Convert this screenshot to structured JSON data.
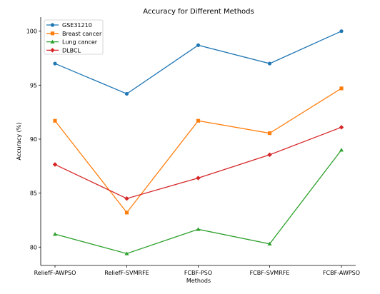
{
  "chart_data": {
    "type": "line",
    "title": "Accuracy for Different Methods",
    "xlabel": "Methods",
    "ylabel": "Accuracy (%)",
    "categories": [
      "ReliefF-AWPSO",
      "ReliefF-SVMRFE",
      "FCBF-PSO",
      "FCBF-SVMRFE",
      "FCBF-AWPSO"
    ],
    "ylim": [
      78.3,
      101.3
    ],
    "yticks": [
      80,
      85,
      90,
      95,
      100
    ],
    "grid": false,
    "legend_position": "top-left",
    "series": [
      {
        "name": "GSE31210",
        "color": "#1f77b4",
        "marker": "circle",
        "values": [
          97.0,
          94.2,
          98.7,
          97.0,
          100.0
        ]
      },
      {
        "name": "Breast cancer",
        "color": "#ff7f0e",
        "marker": "square",
        "values": [
          91.7,
          83.2,
          91.7,
          90.55,
          94.7
        ]
      },
      {
        "name": "Lung cancer",
        "color": "#2ca02c",
        "marker": "triangle",
        "values": [
          81.2,
          79.4,
          81.65,
          80.3,
          89.0
        ]
      },
      {
        "name": "DLBCL",
        "color": "#d62728",
        "marker": "diamond",
        "values": [
          87.65,
          84.5,
          86.4,
          88.55,
          91.1
        ]
      }
    ]
  }
}
